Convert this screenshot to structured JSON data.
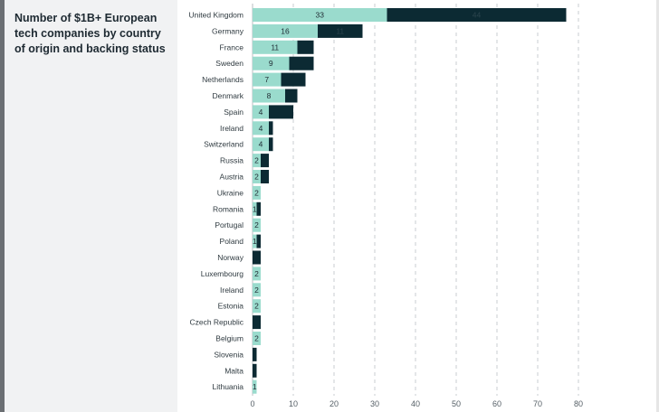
{
  "chart_data": {
    "type": "bar",
    "stacked": true,
    "orientation": "horizontal",
    "title": "Number of $1B+ European tech companies by country of origin and backing status",
    "categories": [
      "United Kingdom",
      "Germany",
      "France",
      "Sweden",
      "Netherlands",
      "Denmark",
      "Spain",
      "Ireland",
      "Switzerland",
      "Russia",
      "Austria",
      "Ukraine",
      "Romania",
      "Portugal",
      "Poland",
      "Norway",
      "Luxembourg",
      "Ireland",
      "Estonia",
      "Czech Republic",
      "Belgium",
      "Slovenia",
      "Malta",
      "Lithuania"
    ],
    "series": [
      {
        "values": [
          33,
          16,
          11,
          9,
          7,
          8,
          4,
          4,
          4,
          2,
          2,
          2,
          1,
          2,
          1,
          0,
          2,
          2,
          2,
          0,
          2,
          0,
          0,
          1
        ],
        "labels": [
          "33",
          "16",
          "11",
          "9",
          "7",
          "8",
          "4",
          "4",
          "4",
          "2",
          "2",
          "2",
          "1",
          "2",
          "1",
          "",
          "2",
          "2",
          "2",
          "",
          "2",
          "",
          "",
          "1"
        ],
        "color": "#9adbcd"
      },
      {
        "values": [
          44,
          11,
          4,
          6,
          6,
          3,
          6,
          1,
          1,
          2,
          2,
          0,
          1,
          0,
          1,
          2,
          0,
          0,
          0,
          2,
          0,
          1,
          1,
          0
        ],
        "labels": [
          "44",
          "11",
          "",
          "",
          "",
          "",
          "",
          "",
          "",
          "",
          "",
          "",
          "",
          "",
          "",
          "",
          "",
          "",
          "",
          "",
          "",
          "",
          "",
          ""
        ],
        "color": "#0c2a33"
      }
    ],
    "xlim": [
      0,
      80
    ],
    "xticks": [
      0,
      10,
      20,
      30,
      40,
      50,
      60,
      70,
      80
    ],
    "grid": true,
    "legend": "none"
  }
}
